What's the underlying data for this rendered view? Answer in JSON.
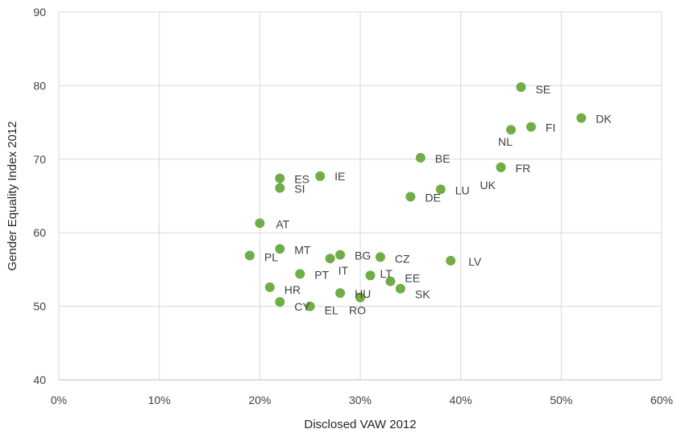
{
  "chart_data": {
    "type": "scatter",
    "title": "",
    "xlabel": "Disclosed VAW 2012",
    "ylabel": "Gender Equality Index 2012",
    "xlim": [
      0,
      0.6
    ],
    "ylim": [
      40,
      90
    ],
    "x_ticks": [
      0,
      0.1,
      0.2,
      0.3,
      0.4,
      0.5,
      0.6
    ],
    "x_tick_labels": [
      "0%",
      "10%",
      "20%",
      "30%",
      "40%",
      "50%",
      "60%"
    ],
    "y_ticks": [
      40,
      50,
      60,
      70,
      80,
      90
    ],
    "y_tick_labels": [
      "40",
      "50",
      "60",
      "70",
      "80",
      "90"
    ],
    "grid": true,
    "marker_color": "#70ad47",
    "points": [
      {
        "label": "SE",
        "x": 0.46,
        "y": 79.8
      },
      {
        "label": "DK",
        "x": 0.52,
        "y": 75.6
      },
      {
        "label": "FI",
        "x": 0.47,
        "y": 74.4
      },
      {
        "label": "NL",
        "x": 0.45,
        "y": 74.0
      },
      {
        "label": "BE",
        "x": 0.36,
        "y": 70.2
      },
      {
        "label": "FR",
        "x": 0.44,
        "y": 68.9
      },
      {
        "label": "UK",
        "x": 0.44,
        "y": 68.9
      },
      {
        "label": "ES",
        "x": 0.22,
        "y": 67.4
      },
      {
        "label": "IE",
        "x": 0.26,
        "y": 67.7
      },
      {
        "label": "SI",
        "x": 0.22,
        "y": 66.1
      },
      {
        "label": "LU",
        "x": 0.38,
        "y": 65.9
      },
      {
        "label": "DE",
        "x": 0.35,
        "y": 64.9
      },
      {
        "label": "AT",
        "x": 0.2,
        "y": 61.3
      },
      {
        "label": "MT",
        "x": 0.22,
        "y": 57.8
      },
      {
        "label": "PL",
        "x": 0.19,
        "y": 56.9
      },
      {
        "label": "BG",
        "x": 0.28,
        "y": 57.0
      },
      {
        "label": "CZ",
        "x": 0.32,
        "y": 56.7
      },
      {
        "label": "IT",
        "x": 0.27,
        "y": 56.5
      },
      {
        "label": "LV",
        "x": 0.39,
        "y": 56.2
      },
      {
        "label": "PT",
        "x": 0.24,
        "y": 54.4
      },
      {
        "label": "LT",
        "x": 0.31,
        "y": 54.2
      },
      {
        "label": "EE",
        "x": 0.33,
        "y": 53.4
      },
      {
        "label": "SK",
        "x": 0.34,
        "y": 52.4
      },
      {
        "label": "HR",
        "x": 0.21,
        "y": 52.6
      },
      {
        "label": "HU",
        "x": 0.28,
        "y": 51.8
      },
      {
        "label": "RO",
        "x": 0.3,
        "y": 51.2
      },
      {
        "label": "CY",
        "x": 0.22,
        "y": 50.6
      },
      {
        "label": "EL",
        "x": 0.25,
        "y": 50.0
      }
    ]
  }
}
